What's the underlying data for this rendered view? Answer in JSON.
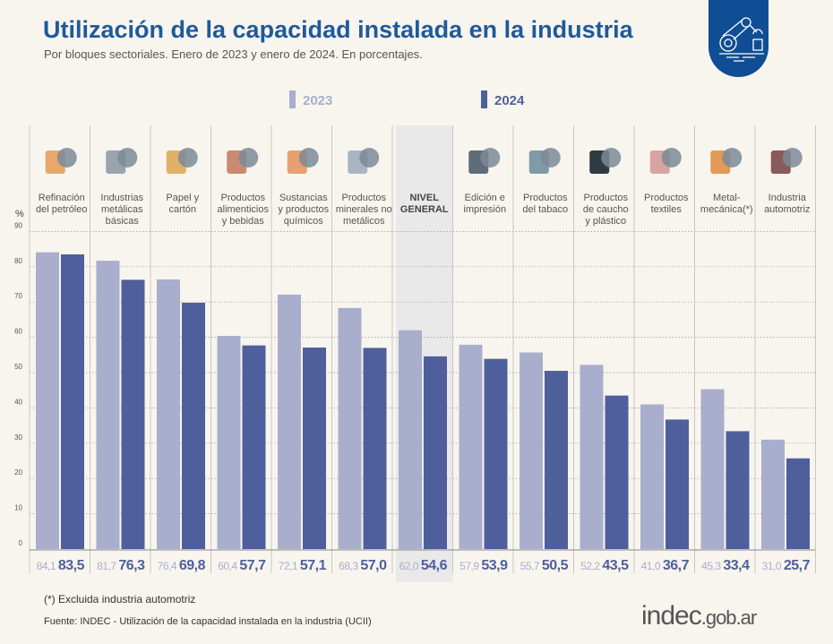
{
  "header": {
    "title": "Utilización de la capacidad instalada en la industria",
    "subtitle": "Por bloques sectoriales. Enero de 2023 y enero de 2024. En porcentajes."
  },
  "footer": {
    "note": "(*) Excluida industria automotriz",
    "source": "Fuente: INDEC - Utilización de la capacidad instalada en la industria (UCII)",
    "logo_main": "indec",
    "logo_suffix": ".gob.ar"
  },
  "colors": {
    "y2023": "#a9aecd",
    "y2024": "#4f5f9c",
    "title": "#1e5a9c",
    "highlight": "#e9e9ea"
  },
  "chart_data": {
    "type": "bar",
    "title": "Utilización de la capacidad instalada en la industria",
    "ylabel": "%",
    "ylim": [
      0,
      90
    ],
    "yticks": [
      0,
      10,
      20,
      30,
      40,
      50,
      60,
      70,
      80,
      90
    ],
    "grid": true,
    "legend_placement": "top",
    "categories": [
      [
        "Refinación",
        "del petróleo"
      ],
      [
        "Industrias",
        "metálicas",
        "básicas"
      ],
      [
        "Papel y",
        "cartón"
      ],
      [
        "Productos",
        "alimenticios",
        "y bebidas"
      ],
      [
        "Sustancias",
        "y productos",
        "químicos"
      ],
      [
        "Productos",
        "minerales no",
        "metálicos"
      ],
      [
        "NIVEL",
        "GENERAL"
      ],
      [
        "Edición e",
        "impresión"
      ],
      [
        "Productos",
        "del tabaco"
      ],
      [
        "Productos",
        "de caucho",
        "y plástico"
      ],
      [
        "Productos",
        "textiles"
      ],
      [
        "Metal-",
        "mecánica(*)"
      ],
      [
        "Industria",
        "automotriz"
      ]
    ],
    "highlight_index": 6,
    "series": [
      {
        "name": "2023",
        "values": [
          84.1,
          81.7,
          76.4,
          60.4,
          72.1,
          68.3,
          62.0,
          57.9,
          55.7,
          52.2,
          41.0,
          45.3,
          31.0
        ],
        "labels": [
          "84,1",
          "81,7",
          "76,4",
          "60,4",
          "72,1",
          "68,3",
          "62,0",
          "57,9",
          "55,7",
          "52,2",
          "41,0",
          "45,3",
          "31,0"
        ]
      },
      {
        "name": "2024",
        "values": [
          83.5,
          76.3,
          69.8,
          57.7,
          57.1,
          57.0,
          54.6,
          53.9,
          50.5,
          43.5,
          36.7,
          33.4,
          25.7
        ],
        "labels": [
          "83,5",
          "76,3",
          "69,8",
          "57,7",
          "57,1",
          "57,0",
          "54,6",
          "53,9",
          "50,5",
          "43,5",
          "36,7",
          "33,4",
          "25,7"
        ]
      }
    ]
  }
}
